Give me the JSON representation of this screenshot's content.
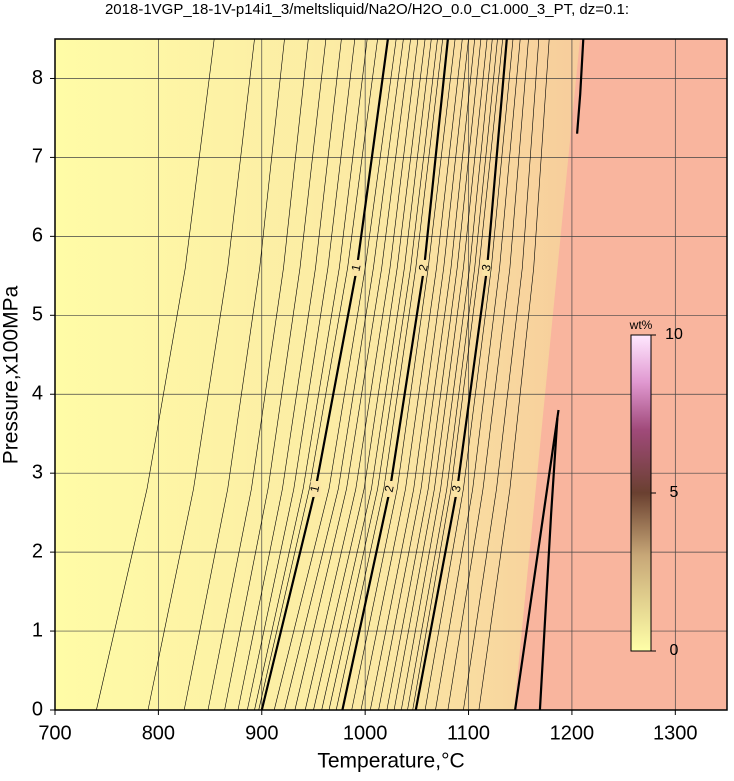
{
  "chart_data": {
    "type": "contour",
    "title": "2018-1VGP_18-1V-p14i1_3/meltsliquid/Na2O/H2O_0.0_C1.000_3_PT, dz=0.1:",
    "x_label": "Temperature,°C",
    "y_label": "Pressure,x100MPa",
    "xlim": [
      700,
      1350
    ],
    "xticks": [
      700,
      800,
      900,
      1000,
      1100,
      1200,
      1300
    ],
    "ylim": [
      0,
      8.5
    ],
    "yticks": [
      0,
      1,
      2,
      3,
      4,
      5,
      6,
      7,
      8
    ],
    "grid": true,
    "y": [
      0,
      2.8,
      5.6,
      8.5
    ],
    "lines": [
      {
        "x": [
          740,
          789,
          826,
          854
        ]
      },
      {
        "x": [
          790,
          834,
          867,
          893
        ]
      },
      {
        "x": [
          825,
          867,
          898,
          922
        ]
      },
      {
        "x": [
          848,
          890,
          921,
          945
        ]
      },
      {
        "x": [
          864,
          906,
          937,
          962
        ]
      },
      {
        "x": [
          877,
          920,
          952,
          977
        ]
      },
      {
        "x": [
          886,
          931,
          964,
          990
        ]
      },
      {
        "x": [
          893,
          940,
          975,
          1002
        ]
      },
      {
        "x": [
          897,
          946,
          983,
          1012
        ]
      },
      {
        "level": 1,
        "x": [
          900,
          952,
          992,
          1022
        ]
      },
      {
        "x": [
          912,
          965,
          1000,
          1030
        ]
      },
      {
        "x": [
          922,
          974,
          1008,
          1037
        ]
      },
      {
        "x": [
          932,
          982,
          1016,
          1044
        ]
      },
      {
        "x": [
          942,
          991,
          1024,
          1051
        ]
      },
      {
        "x": [
          950,
          999,
          1031,
          1058
        ]
      },
      {
        "x": [
          958,
          1006,
          1038,
          1064
        ]
      },
      {
        "x": [
          965,
          1012,
          1044,
          1070
        ]
      },
      {
        "x": [
          972,
          1018,
          1049,
          1075
        ]
      },
      {
        "level": 2,
        "x": [
          978,
          1024,
          1057,
          1080
        ]
      },
      {
        "x": [
          987,
          1031,
          1061,
          1087
        ]
      },
      {
        "x": [
          996,
          1039,
          1069,
          1094
        ]
      },
      {
        "x": [
          1005,
          1047,
          1076,
          1100
        ]
      },
      {
        "x": [
          1013,
          1054,
          1083,
          1106
        ]
      },
      {
        "x": [
          1021,
          1061,
          1089,
          1112
        ]
      },
      {
        "x": [
          1028,
          1067,
          1095,
          1118
        ]
      },
      {
        "x": [
          1035,
          1073,
          1101,
          1123
        ]
      },
      {
        "x": [
          1041,
          1079,
          1106,
          1128
        ]
      },
      {
        "x": [
          1046,
          1083,
          1110,
          1133
        ]
      },
      {
        "level": 3,
        "x": [
          1049,
          1089,
          1118,
          1137
        ]
      },
      {
        "x": [
          1058,
          1095,
          1122,
          1143
        ]
      },
      {
        "x": [
          1068,
          1104,
          1130,
          1150
        ]
      },
      {
        "x": [
          1080,
          1114,
          1140,
          1158
        ]
      },
      {
        "x": [
          1095,
          1127,
          1152,
          1168
        ]
      },
      {
        "x": [
          1110,
          1140,
          1163,
          1178
        ]
      },
      {
        "bold": true,
        "x": [
          1145,
          1176,
          1187
        ],
        "y": [
          0,
          2.8,
          3.8
        ]
      },
      {
        "bold": true,
        "x": [
          1169,
          1180,
          1186
        ],
        "y": [
          0,
          2.5,
          3.7
        ]
      },
      {
        "bold": true,
        "x": [
          1205,
          1208,
          1211
        ],
        "y": [
          7.3,
          7.8,
          8.5
        ]
      }
    ],
    "colorbar": {
      "label": "wt%",
      "lim": [
        0,
        10
      ],
      "ticks": [
        0,
        5,
        10
      ]
    }
  }
}
